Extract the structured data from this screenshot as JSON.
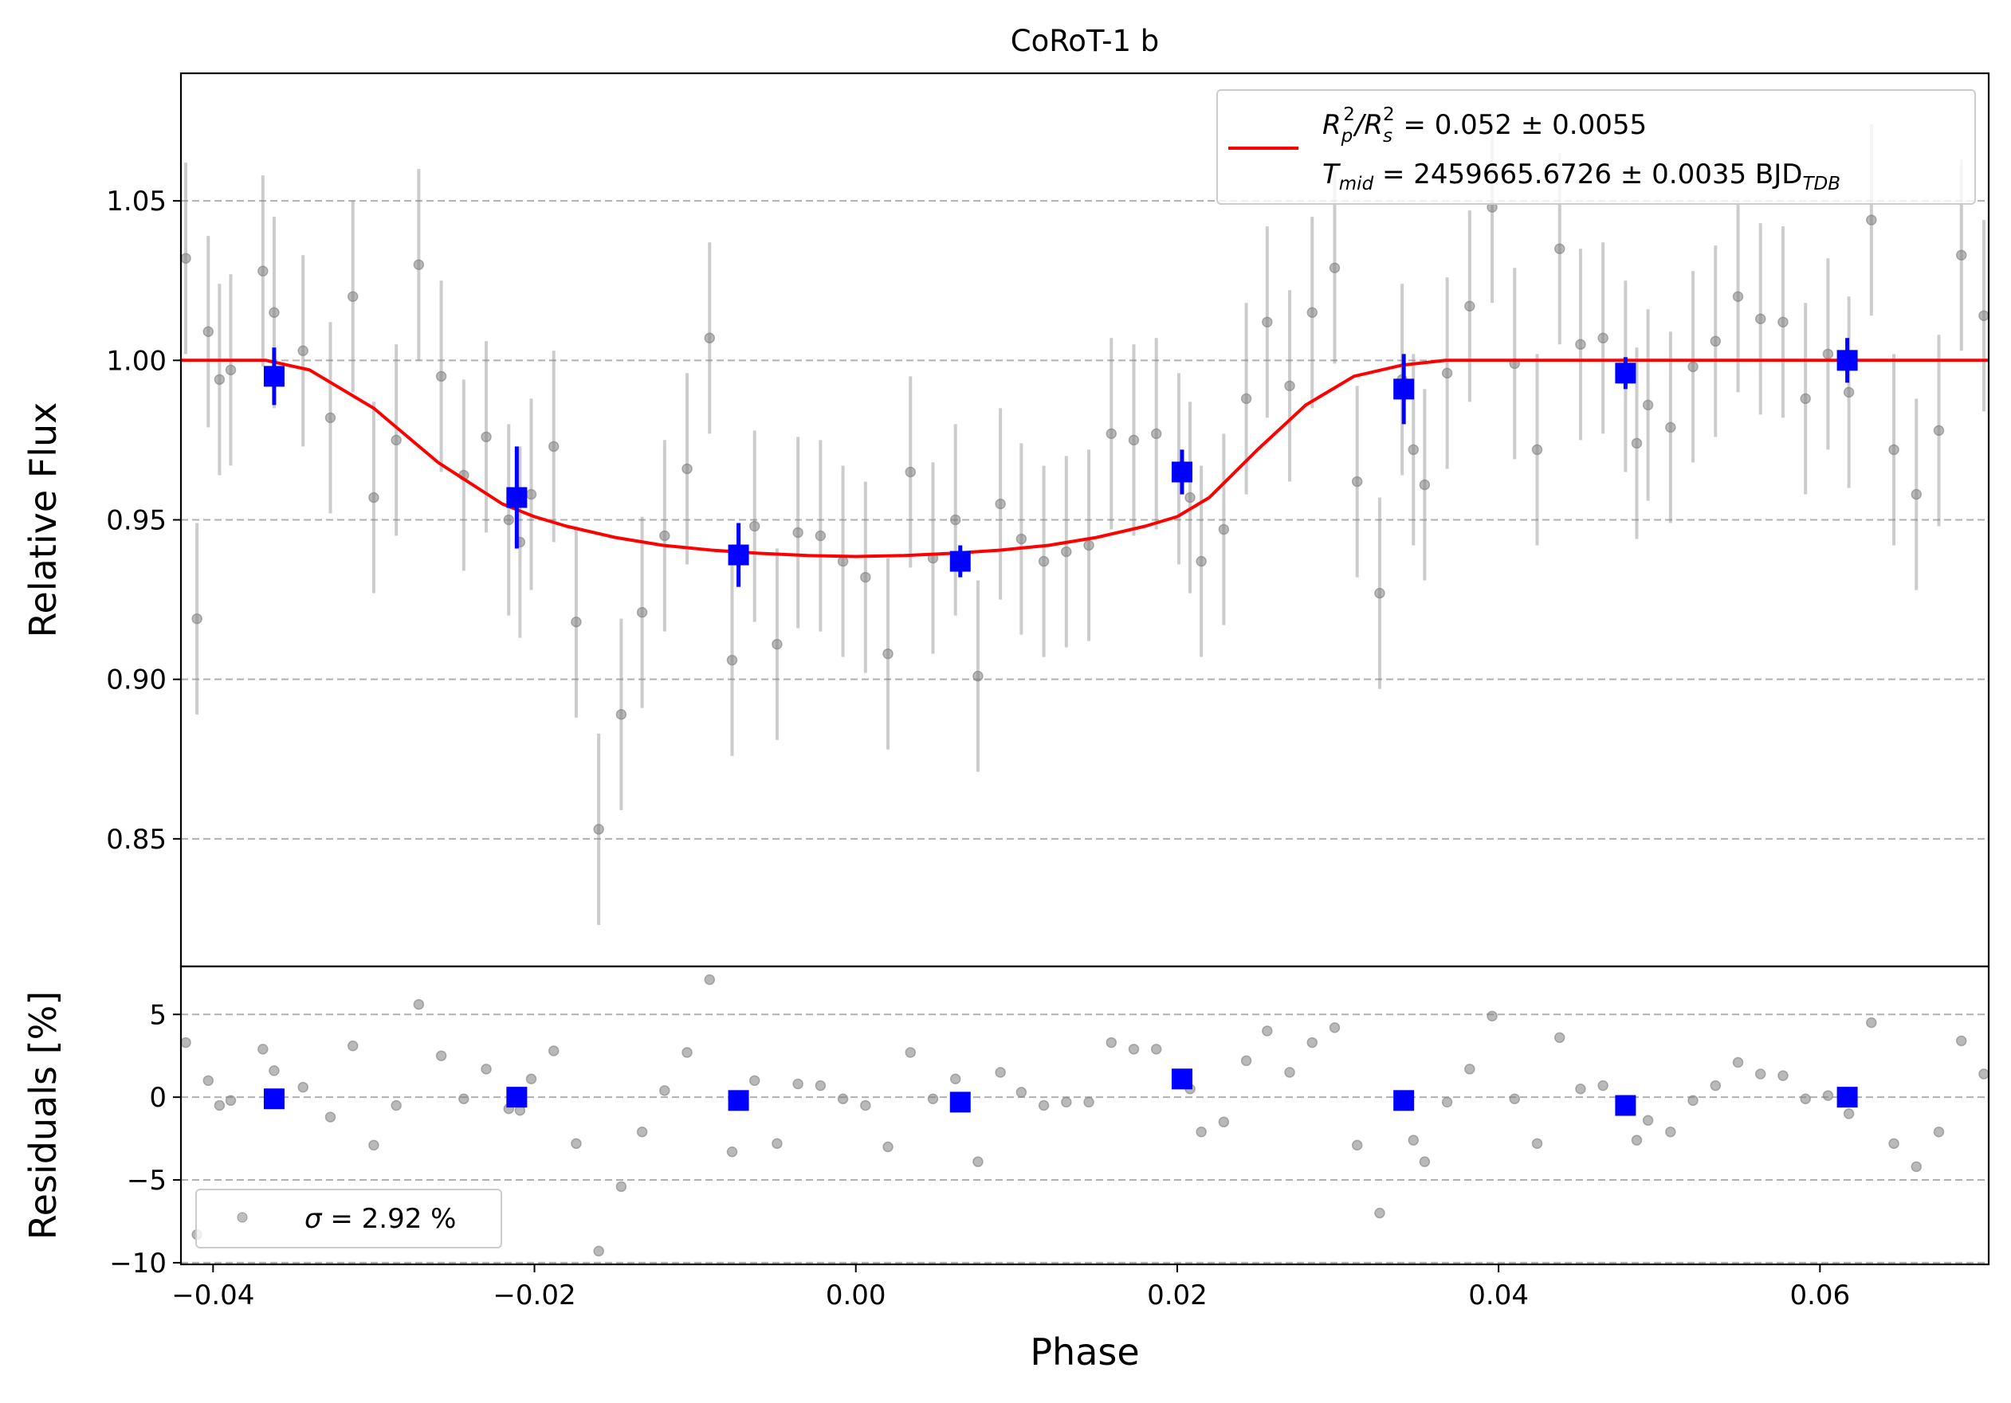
{
  "chart_data": [
    {
      "type": "scatter",
      "title": "CoRoT-1 b",
      "xlabel": "",
      "ylabel": "Relative Flux",
      "xlim": [
        -0.042,
        0.0705
      ],
      "ylim": [
        0.81,
        1.09
      ],
      "yticks": [
        "0.85",
        "0.90",
        "0.95",
        "1.00",
        "1.05"
      ],
      "ytick_values": [
        0.85,
        0.9,
        0.95,
        1.0,
        1.05
      ],
      "grid": "horizontal dashed",
      "legend": {
        "placement": "top-right",
        "line1": {
          "prefix": "R",
          "sub1": "p",
          "sup1": "2",
          "slash": "/R",
          "sub2": "s",
          "sup2": "2",
          "rest": " = 0.052 ± 0.0055"
        },
        "line2": {
          "prefix": "T",
          "sub": "mid",
          "rest": " = 2459665.6726 ± 0.0035 BJD",
          "sub2": "TDB"
        }
      },
      "series": [
        {
          "name": "raw",
          "color": "#808080",
          "x": [
            -0.0417,
            -0.041,
            -0.0403,
            -0.0396,
            -0.0389,
            -0.0369,
            -0.0362,
            -0.0344,
            -0.0327,
            -0.0313,
            -0.03,
            -0.0286,
            -0.0272,
            -0.0258,
            -0.0244,
            -0.023,
            -0.0216,
            -0.0209,
            -0.0202,
            -0.0188,
            -0.0174,
            -0.016,
            -0.0146,
            -0.0133,
            -0.0119,
            -0.0105,
            -0.0091,
            -0.0077,
            -0.0063,
            -0.0049,
            -0.0036,
            -0.0022,
            -0.0008,
            0.0006,
            0.002,
            0.0034,
            0.0048,
            0.0062,
            0.0076,
            0.009,
            0.0103,
            0.0117,
            0.0131,
            0.0145,
            0.0159,
            0.0173,
            0.0187,
            0.0201,
            0.0208,
            0.0215,
            0.0229,
            0.0243,
            0.0256,
            0.027,
            0.0284,
            0.0298,
            0.0312,
            0.0326,
            0.034,
            0.0347,
            0.0354,
            0.0368,
            0.0382,
            0.0396,
            0.041,
            0.0424,
            0.0438,
            0.0451,
            0.0465,
            0.0479,
            0.0486,
            0.0493,
            0.0507,
            0.0521,
            0.0535,
            0.0549,
            0.0563,
            0.0577,
            0.0591,
            0.0605,
            0.0618,
            0.0632,
            0.0646,
            0.066,
            0.0674,
            0.0688,
            0.0702
          ],
          "y": [
            1.032,
            0.919,
            1.009,
            0.994,
            0.997,
            1.028,
            1.015,
            1.003,
            0.982,
            1.02,
            0.957,
            0.975,
            1.03,
            0.995,
            0.964,
            0.976,
            0.95,
            0.943,
            0.958,
            0.973,
            0.918,
            0.853,
            0.889,
            0.921,
            0.945,
            0.966,
            1.007,
            0.906,
            0.948,
            0.911,
            0.946,
            0.945,
            0.937,
            0.932,
            0.908,
            0.965,
            0.938,
            0.95,
            0.901,
            0.955,
            0.944,
            0.937,
            0.94,
            0.942,
            0.977,
            0.975,
            0.977,
            0.966,
            0.957,
            0.937,
            0.947,
            0.988,
            1.012,
            0.992,
            1.015,
            1.029,
            0.962,
            0.927,
            0.994,
            0.972,
            0.961,
            0.996,
            1.017,
            1.048,
            0.999,
            0.972,
            1.035,
            1.005,
            1.007,
            0.995,
            0.974,
            0.986,
            0.979,
            0.998,
            1.006,
            1.02,
            1.013,
            1.012,
            0.988,
            1.002,
            0.99,
            1.044,
            0.972,
            0.958,
            0.978,
            1.033,
            1.014
          ],
          "yerr": 0.03
        },
        {
          "name": "binned",
          "color": "#0000ff",
          "x": [
            -0.0362,
            -0.0211,
            -0.0073,
            0.0065,
            0.0203,
            0.0341,
            0.0479,
            0.0617
          ],
          "y": [
            0.995,
            0.957,
            0.939,
            0.937,
            0.965,
            0.991,
            0.996,
            1.0
          ],
          "yerr": [
            0.009,
            0.016,
            0.01,
            0.005,
            0.007,
            0.011,
            0.005,
            0.007
          ]
        },
        {
          "name": "model",
          "color": "#ff0000",
          "x": [
            -0.042,
            -0.0367,
            -0.034,
            -0.03,
            -0.026,
            -0.022,
            -0.02,
            -0.018,
            -0.015,
            -0.012,
            -0.009,
            -0.006,
            -0.003,
            0.0,
            0.003,
            0.006,
            0.009,
            0.012,
            0.015,
            0.018,
            0.02,
            0.022,
            0.025,
            0.028,
            0.031,
            0.034,
            0.0367,
            0.0705
          ],
          "y": [
            1.0,
            1.0,
            0.997,
            0.985,
            0.968,
            0.955,
            0.951,
            0.948,
            0.9445,
            0.942,
            0.9405,
            0.9395,
            0.9388,
            0.9385,
            0.9388,
            0.9395,
            0.9405,
            0.942,
            0.9445,
            0.948,
            0.951,
            0.957,
            0.972,
            0.986,
            0.995,
            0.9985,
            1.0,
            1.0
          ]
        }
      ]
    },
    {
      "type": "scatter",
      "title": "",
      "xlabel": "Phase",
      "ylabel": "Residuals [%]",
      "xlim": [
        -0.042,
        0.0705
      ],
      "ylim": [
        -10.1,
        7.9
      ],
      "yticks": [
        "−10",
        "−5",
        "0",
        "5"
      ],
      "ytick_values": [
        -10,
        -5,
        0,
        5
      ],
      "xticks": [
        "−0.04",
        "−0.02",
        "0.00",
        "0.02",
        "0.04",
        "0.06"
      ],
      "xtick_values": [
        -0.04,
        -0.02,
        0.0,
        0.02,
        0.04,
        0.06
      ],
      "grid": "horizontal dashed",
      "legend": {
        "placement": "bottom-left",
        "label_prefix": "σ",
        "label_rest": " = 2.92 %"
      },
      "series": [
        {
          "name": "raw residuals",
          "color": "#808080",
          "x": [
            -0.0417,
            -0.041,
            -0.0403,
            -0.0396,
            -0.0389,
            -0.0369,
            -0.0362,
            -0.0344,
            -0.0327,
            -0.0313,
            -0.03,
            -0.0286,
            -0.0272,
            -0.0258,
            -0.0244,
            -0.023,
            -0.0216,
            -0.0209,
            -0.0202,
            -0.0188,
            -0.0174,
            -0.016,
            -0.0146,
            -0.0133,
            -0.0119,
            -0.0105,
            -0.0091,
            -0.0077,
            -0.0063,
            -0.0049,
            -0.0036,
            -0.0022,
            -0.0008,
            0.0006,
            0.002,
            0.0034,
            0.0048,
            0.0062,
            0.0076,
            0.009,
            0.0103,
            0.0117,
            0.0131,
            0.0145,
            0.0159,
            0.0173,
            0.0187,
            0.0201,
            0.0208,
            0.0215,
            0.0229,
            0.0243,
            0.0256,
            0.027,
            0.0284,
            0.0298,
            0.0312,
            0.0326,
            0.034,
            0.0347,
            0.0354,
            0.0368,
            0.0382,
            0.0396,
            0.041,
            0.0424,
            0.0438,
            0.0451,
            0.0465,
            0.0479,
            0.0486,
            0.0493,
            0.0507,
            0.0521,
            0.0535,
            0.0549,
            0.0563,
            0.0577,
            0.0591,
            0.0605,
            0.0618,
            0.0632,
            0.0646,
            0.066,
            0.0674,
            0.0688,
            0.0702
          ],
          "y": [
            3.3,
            -8.3,
            1.0,
            -0.5,
            -0.2,
            2.9,
            1.6,
            0.6,
            -1.2,
            3.1,
            -2.9,
            -0.5,
            5.6,
            2.5,
            -0.1,
            1.7,
            -0.7,
            -0.8,
            1.1,
            2.8,
            -2.8,
            -9.3,
            -5.4,
            -2.1,
            0.4,
            2.7,
            7.1,
            -3.3,
            1.0,
            -2.8,
            0.8,
            0.7,
            -0.1,
            -0.5,
            -3.0,
            2.7,
            -0.1,
            1.1,
            -3.9,
            1.5,
            0.3,
            -0.5,
            -0.3,
            -0.3,
            3.3,
            2.9,
            2.9,
            1.3,
            0.5,
            -2.1,
            -1.5,
            2.2,
            4.0,
            1.5,
            3.3,
            4.2,
            -2.9,
            -7.0,
            -0.2,
            -2.6,
            -3.9,
            -0.3,
            1.7,
            4.9,
            -0.1,
            -2.8,
            3.6,
            0.5,
            0.7,
            -0.4,
            -2.6,
            -1.4,
            -2.1,
            -0.2,
            0.7,
            2.1,
            1.4,
            1.3,
            -0.1,
            0.1,
            -1.0,
            4.5,
            -2.8,
            -4.2,
            -2.1,
            3.4,
            1.4
          ]
        },
        {
          "name": "binned residuals",
          "color": "#0000ff",
          "x": [
            -0.0362,
            -0.0211,
            -0.0073,
            0.0065,
            0.0203,
            0.0341,
            0.0479,
            0.0617
          ],
          "y": [
            -0.1,
            0.0,
            -0.2,
            -0.3,
            1.1,
            -0.2,
            -0.5,
            0.0
          ]
        }
      ]
    }
  ]
}
